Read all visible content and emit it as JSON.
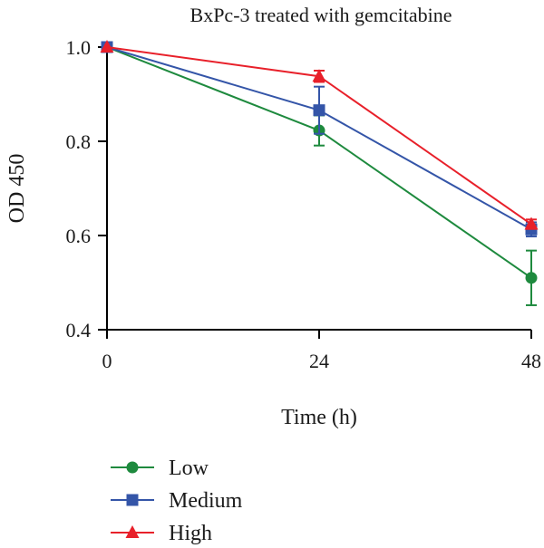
{
  "chart_data": {
    "type": "line",
    "title": "BxPc-3 treated with gemcitabine",
    "xlabel": "Time (h)",
    "ylabel": "OD 450",
    "x": [
      0,
      24,
      48
    ],
    "x_ticks": [
      "0",
      "24",
      "48"
    ],
    "y_ticks": [
      "0.4",
      "0.6",
      "0.8",
      "1.0"
    ],
    "xlim": [
      0,
      48
    ],
    "ylim": [
      0.4,
      1.0
    ],
    "grid": false,
    "legend_position": "bottom-left",
    "series": [
      {
        "name": "Low",
        "color": "#1e8a3e",
        "marker": "circle",
        "values": [
          1.0,
          0.823,
          0.51
        ],
        "errors": [
          0,
          0.032,
          0.058
        ]
      },
      {
        "name": "Medium",
        "color": "#3455a8",
        "marker": "square",
        "values": [
          1.0,
          0.866,
          0.613
        ],
        "errors": [
          0,
          0.05,
          0.015
        ]
      },
      {
        "name": "High",
        "color": "#e8202a",
        "marker": "triangle",
        "values": [
          1.0,
          0.938,
          0.624
        ],
        "errors": [
          0,
          0.012,
          0.01
        ]
      }
    ]
  }
}
